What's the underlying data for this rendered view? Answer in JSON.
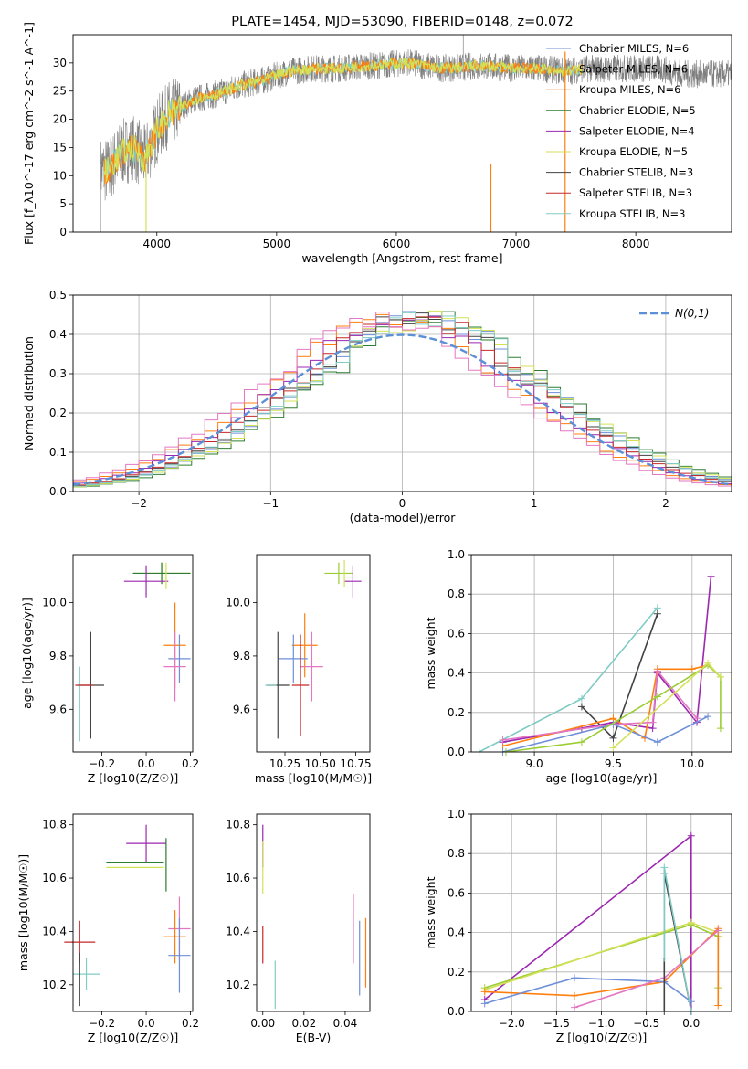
{
  "colors": {
    "chabrier_miles": "#6f8fd8",
    "salpeter_miles": "#ff7f0e",
    "kroupa_miles": "#e87a2a",
    "chabrier_elodie": "#2e7d32",
    "salpeter_elodie": "#9c27b0",
    "kroupa_elodie": "#d4e157",
    "chabrier_stelib": "#424242",
    "salpeter_stelib": "#c62828",
    "kroupa_stelib": "#80cbc4",
    "pink": "#e377c2",
    "lime": "#9acd32",
    "gauss": "#5b8fd6",
    "grid": "#b0b0b0"
  },
  "chart_data": [
    {
      "id": "spectrum",
      "type": "line",
      "title": "PLATE=1454, MJD=53090, FIBERID=0148, z=0.072",
      "xlabel": "wavelength [Angstrom, rest frame]",
      "ylabel": "Flux [f_λ10^-17 erg cm^-2 s^-1 A^-1]",
      "xlim": [
        3300,
        8800
      ],
      "ylim": [
        0,
        35
      ],
      "xticks": [
        "4000",
        "5000",
        "6000",
        "7000",
        "8000"
      ],
      "yticks": [
        "0",
        "5",
        "10",
        "15",
        "20",
        "25",
        "30"
      ],
      "grid": false,
      "legend_position": "upper-right",
      "series": [
        {
          "name": "Chabrier MILES, N_SSP=6",
          "color_key": "chabrier_miles"
        },
        {
          "name": "Salpeter MILES, N_SSP=6",
          "color_key": "salpeter_miles"
        },
        {
          "name": "Kroupa MILES, N_SSP=6",
          "color_key": "kroupa_miles"
        },
        {
          "name": "Chabrier ELODIE, N_SSP=5",
          "color_key": "chabrier_elodie"
        },
        {
          "name": "Salpeter ELODIE, N_SSP=4",
          "color_key": "salpeter_elodie"
        },
        {
          "name": "Kroupa ELODIE, N_SSP=5",
          "color_key": "kroupa_elodie"
        },
        {
          "name": "Chabrier STELIB, N_SSP=3",
          "color_key": "chabrier_stelib"
        },
        {
          "name": "Salpeter STELIB, N_SSP=3",
          "color_key": "salpeter_stelib"
        },
        {
          "name": "Kroupa STELIB, N_SSP=3",
          "color_key": "kroupa_stelib"
        }
      ],
      "continuum": {
        "x": [
          3530,
          3600,
          3700,
          3800,
          3900,
          4000,
          4100,
          4200,
          4300,
          4500,
          4700,
          4900,
          5100,
          5300,
          5500,
          5800,
          6100,
          6400,
          6700,
          7000,
          7200,
          7400,
          7600,
          7800,
          8000,
          8200,
          8400,
          8600,
          8800
        ],
        "y": [
          11,
          11,
          14,
          15,
          13,
          18,
          21,
          22,
          23.5,
          24.5,
          26,
          27,
          28.5,
          29,
          29,
          29.5,
          30,
          29,
          29.5,
          29,
          29,
          28.5,
          29,
          29,
          29,
          29,
          28,
          28,
          28
        ]
      }
    },
    {
      "id": "residuals",
      "type": "bar",
      "xlabel": "(data-model)/error",
      "ylabel": "Normed distribution",
      "xlim": [
        -2.5,
        2.5
      ],
      "ylim": [
        0,
        0.5
      ],
      "xticks": [
        "−2",
        "−1",
        "0",
        "1",
        "2"
      ],
      "yticks": [
        "0.0",
        "0.1",
        "0.2",
        "0.3",
        "0.4",
        "0.5"
      ],
      "grid": true,
      "legend_position": "upper-right",
      "legend": "N(0,1)",
      "bin_width": 0.1,
      "reference": {
        "type": "normal",
        "mean": 0,
        "sigma": 1,
        "name": "N(0,1)"
      },
      "histograms": [
        {
          "color_key": "chabrier_miles",
          "shift": 0.02
        },
        {
          "color_key": "salpeter_miles",
          "shift": -0.01
        },
        {
          "color_key": "chabrier_elodie",
          "shift": 0.03
        },
        {
          "color_key": "salpeter_elodie",
          "shift": 0.0
        },
        {
          "color_key": "kroupa_elodie",
          "shift": 0.025
        },
        {
          "color_key": "chabrier_stelib",
          "shift": 0.015
        },
        {
          "color_key": "salpeter_stelib",
          "shift": 0.01
        },
        {
          "color_key": "kroupa_stelib",
          "shift": 0.02
        },
        {
          "color_key": "pink",
          "shift": -0.02
        }
      ]
    },
    {
      "id": "age_vs_Z",
      "type": "scatter",
      "xlabel": "Z [log10(Z/Z☉)]",
      "ylabel": "age [log10(age/yr)]",
      "xlim": [
        -0.33,
        0.21
      ],
      "ylim": [
        9.44,
        10.18
      ],
      "xticks": [
        "−0.2",
        "0.0",
        "0.2"
      ],
      "yticks": [
        "9.6",
        "9.8",
        "10.0"
      ],
      "grid": false,
      "points": [
        {
          "x": 0.07,
          "y": 10.11,
          "xerr": 0.13,
          "yerr": 0.04,
          "color_key": "lime"
        },
        {
          "x": 0.07,
          "y": 10.11,
          "xerr": 0.13,
          "yerr": 0.04,
          "color_key": "chabrier_elodie"
        },
        {
          "x": 0.0,
          "y": 10.08,
          "xerr": 0.1,
          "yerr": 0.06,
          "color_key": "salpeter_elodie"
        },
        {
          "x": 0.09,
          "y": 10.1,
          "xerr": 0.0,
          "yerr": 0.05,
          "color_key": "kroupa_elodie"
        },
        {
          "x": 0.13,
          "y": 9.84,
          "xerr": 0.05,
          "yerr": 0.16,
          "color_key": "salpeter_miles"
        },
        {
          "x": 0.15,
          "y": 9.79,
          "xerr": 0.05,
          "yerr": 0.09,
          "color_key": "chabrier_miles"
        },
        {
          "x": 0.13,
          "y": 9.76,
          "xerr": 0.05,
          "yerr": 0.13,
          "color_key": "pink"
        },
        {
          "x": -0.25,
          "y": 9.69,
          "xerr": 0.06,
          "yerr": 0.2,
          "color_key": "chabrier_stelib"
        },
        {
          "x": -0.3,
          "y": 9.62,
          "xerr": 0.0,
          "yerr": 0.14,
          "color_key": "kroupa_stelib"
        },
        {
          "x": -0.28,
          "y": 9.69,
          "xerr": 0.04,
          "yerr": 0.0,
          "color_key": "salpeter_stelib"
        }
      ]
    },
    {
      "id": "age_vs_mass",
      "type": "scatter",
      "xlabel": "mass [log10(M/M☉)]",
      "ylabel": "",
      "xlim": [
        10.05,
        10.85
      ],
      "ylim": [
        9.44,
        10.18
      ],
      "xticks": [
        "10.25",
        "10.50",
        "10.75"
      ],
      "yticks": [
        "9.6",
        "9.8",
        "10.0"
      ],
      "grid": false,
      "points": [
        {
          "x": 10.63,
          "y": 10.11,
          "xerr": 0.1,
          "yerr": 0.04,
          "color_key": "lime"
        },
        {
          "x": 10.73,
          "y": 10.08,
          "xerr": 0.06,
          "yerr": 0.06,
          "color_key": "salpeter_elodie"
        },
        {
          "x": 10.67,
          "y": 10.11,
          "xerr": 0.0,
          "yerr": 0.05,
          "color_key": "kroupa_elodie"
        },
        {
          "x": 10.39,
          "y": 9.84,
          "xerr": 0.09,
          "yerr": 0.12,
          "color_key": "salpeter_miles"
        },
        {
          "x": 10.31,
          "y": 9.79,
          "xerr": 0.1,
          "yerr": 0.09,
          "color_key": "chabrier_miles"
        },
        {
          "x": 10.44,
          "y": 9.76,
          "xerr": 0.08,
          "yerr": 0.13,
          "color_key": "pink"
        },
        {
          "x": 10.2,
          "y": 9.69,
          "xerr": 0.08,
          "yerr": 0.2,
          "color_key": "chabrier_stelib"
        },
        {
          "x": 10.36,
          "y": 9.69,
          "xerr": 0.06,
          "yerr": 0.19,
          "color_key": "salpeter_stelib"
        },
        {
          "x": 10.15,
          "y": 9.69,
          "xerr": 0.04,
          "yerr": 0.0,
          "color_key": "kroupa_stelib"
        }
      ]
    },
    {
      "id": "weight_vs_age",
      "type": "line",
      "xlabel": "age [log10(age/yr)]",
      "ylabel": "mass weight",
      "xlim": [
        8.6,
        10.25
      ],
      "ylim": [
        0,
        1.0
      ],
      "xticks": [
        "9.0",
        "9.5",
        "10.0"
      ],
      "yticks": [
        "0.0",
        "0.2",
        "0.4",
        "0.6",
        "0.8",
        "1.0"
      ],
      "grid": true,
      "series": [
        {
          "color_key": "kroupa_stelib",
          "x": [
            8.65,
            9.3,
            9.78
          ],
          "y": [
            0.0,
            0.27,
            0.73
          ]
        },
        {
          "color_key": "chabrier_stelib",
          "x": [
            9.3,
            9.5,
            9.78
          ],
          "y": [
            0.23,
            0.07,
            0.7
          ]
        },
        {
          "color_key": "salpeter_elodie",
          "x": [
            8.8,
            9.3,
            9.5,
            9.75,
            9.78,
            10.03,
            10.12
          ],
          "y": [
            0.05,
            0.12,
            0.15,
            0.12,
            0.4,
            0.15,
            0.89
          ]
        },
        {
          "color_key": "salpeter_miles",
          "x": [
            8.8,
            9.5,
            9.7,
            9.78,
            10.0,
            10.1
          ],
          "y": [
            0.03,
            0.17,
            0.07,
            0.42,
            0.42,
            0.44
          ]
        },
        {
          "color_key": "pink",
          "x": [
            8.8,
            9.5,
            9.75,
            9.78,
            10.03
          ],
          "y": [
            0.06,
            0.14,
            0.15,
            0.41,
            0.17
          ]
        },
        {
          "color_key": "chabrier_miles",
          "x": [
            8.8,
            9.5,
            9.78,
            10.1
          ],
          "y": [
            0.0,
            0.14,
            0.05,
            0.18
          ]
        },
        {
          "color_key": "lime",
          "x": [
            8.82,
            9.3,
            9.78,
            10.1,
            10.18,
            10.18
          ],
          "y": [
            0.0,
            0.05,
            0.28,
            0.44,
            0.38,
            0.12
          ]
        },
        {
          "color_key": "kroupa_elodie",
          "x": [
            9.5,
            10.1,
            10.18
          ],
          "y": [
            0.02,
            0.45,
            0.38
          ]
        }
      ]
    },
    {
      "id": "mass_vs_Z",
      "type": "scatter",
      "xlabel": "Z [log10(Z/Z☉)]",
      "ylabel": "mass [log10(M/M☉)]",
      "xlim": [
        -0.33,
        0.21
      ],
      "ylim": [
        10.1,
        10.84
      ],
      "xticks": [
        "−0.2",
        "0.0",
        "0.2"
      ],
      "yticks": [
        "10.2",
        "10.4",
        "10.6",
        "10.8"
      ],
      "grid": false,
      "points": [
        {
          "x": 0.0,
          "y": 10.73,
          "xerr": 0.09,
          "yerr": 0.07,
          "color_key": "salpeter_elodie"
        },
        {
          "x": -0.05,
          "y": 10.66,
          "xerr": 0.13,
          "yerr": 0.0,
          "color_key": "chabrier_elodie"
        },
        {
          "x": -0.05,
          "y": 10.64,
          "xerr": 0.13,
          "yerr": 0.0,
          "color_key": "kroupa_elodie"
        },
        {
          "x": 0.09,
          "y": 10.65,
          "xerr": 0.0,
          "yerr": 0.1,
          "color_key": "chabrier_elodie"
        },
        {
          "x": 0.15,
          "y": 10.41,
          "xerr": 0.05,
          "yerr": 0.12,
          "color_key": "pink"
        },
        {
          "x": 0.13,
          "y": 10.38,
          "xerr": 0.05,
          "yerr": 0.1,
          "color_key": "salpeter_miles"
        },
        {
          "x": 0.15,
          "y": 10.31,
          "xerr": 0.05,
          "yerr": 0.14,
          "color_key": "chabrier_miles"
        },
        {
          "x": -0.3,
          "y": 10.36,
          "xerr": 0.07,
          "yerr": 0.08,
          "color_key": "salpeter_stelib"
        },
        {
          "x": -0.27,
          "y": 10.24,
          "xerr": 0.06,
          "yerr": 0.06,
          "color_key": "kroupa_stelib"
        },
        {
          "x": -0.3,
          "y": 10.22,
          "xerr": 0.0,
          "yerr": 0.1,
          "color_key": "chabrier_stelib"
        }
      ]
    },
    {
      "id": "mass_vs_ebv",
      "type": "scatter",
      "xlabel": "E(B-V)",
      "ylabel": "",
      "xlim": [
        -0.003,
        0.052
      ],
      "ylim": [
        10.1,
        10.84
      ],
      "xticks": [
        "0.00",
        "0.02",
        "0.04"
      ],
      "yticks": [
        "10.2",
        "10.4",
        "10.6",
        "10.8"
      ],
      "grid": false,
      "points": [
        {
          "x": 0.0,
          "y": 10.72,
          "xerr": 0.0,
          "yerr": 0.08,
          "color_key": "salpeter_elodie"
        },
        {
          "x": 0.0,
          "y": 10.64,
          "xerr": 0.0,
          "yerr": 0.1,
          "color_key": "kroupa_elodie"
        },
        {
          "x": 0.0,
          "y": 10.35,
          "xerr": 0.0,
          "yerr": 0.07,
          "color_key": "salpeter_stelib"
        },
        {
          "x": 0.006,
          "y": 10.2,
          "xerr": 0.0,
          "yerr": 0.09,
          "color_key": "kroupa_stelib"
        },
        {
          "x": 0.044,
          "y": 10.41,
          "xerr": 0.0,
          "yerr": 0.13,
          "color_key": "pink"
        },
        {
          "x": 0.047,
          "y": 10.3,
          "xerr": 0.0,
          "yerr": 0.14,
          "color_key": "chabrier_miles"
        },
        {
          "x": 0.05,
          "y": 10.32,
          "xerr": 0.0,
          "yerr": 0.13,
          "color_key": "salpeter_miles"
        }
      ]
    },
    {
      "id": "weight_vs_Z",
      "type": "line",
      "xlabel": "Z [log10(Z/Z☉)]",
      "ylabel": "mass weight",
      "xlim": [
        -2.45,
        0.45
      ],
      "ylim": [
        0,
        1.0
      ],
      "xticks": [
        "−2.0",
        "−1.5",
        "−1.0",
        "−0.5",
        "0.0"
      ],
      "yticks": [
        "0.0",
        "0.2",
        "0.4",
        "0.6",
        "0.8",
        "1.0"
      ],
      "grid": true,
      "series": [
        {
          "color_key": "salpeter_elodie",
          "x": [
            -2.3,
            0.0,
            0.0
          ],
          "y": [
            0.06,
            0.89,
            0.0
          ]
        },
        {
          "color_key": "lime",
          "x": [
            -2.3,
            0.0,
            0.3,
            0.3
          ],
          "y": [
            0.12,
            0.44,
            0.38,
            0.12
          ]
        },
        {
          "color_key": "kroupa_elodie",
          "x": [
            -2.3,
            0.0,
            0.3
          ],
          "y": [
            0.11,
            0.45,
            0.4
          ]
        },
        {
          "color_key": "salpeter_miles",
          "x": [
            -2.3,
            -1.3,
            -0.3,
            0.3,
            0.3
          ],
          "y": [
            0.1,
            0.08,
            0.15,
            0.42,
            0.03
          ]
        },
        {
          "color_key": "chabrier_miles",
          "x": [
            -2.3,
            -1.3,
            -0.3,
            0.0
          ],
          "y": [
            0.04,
            0.17,
            0.15,
            0.05
          ]
        },
        {
          "color_key": "pink",
          "x": [
            -1.3,
            -0.3,
            0.3
          ],
          "y": [
            0.02,
            0.17,
            0.41
          ]
        },
        {
          "color_key": "chabrier_stelib",
          "x": [
            -0.3,
            -0.3,
            0.0
          ],
          "y": [
            0.0,
            0.7,
            0.0
          ]
        },
        {
          "color_key": "kroupa_stelib",
          "x": [
            -0.3,
            -0.3,
            0.0
          ],
          "y": [
            0.27,
            0.73,
            0.0
          ]
        }
      ]
    }
  ]
}
